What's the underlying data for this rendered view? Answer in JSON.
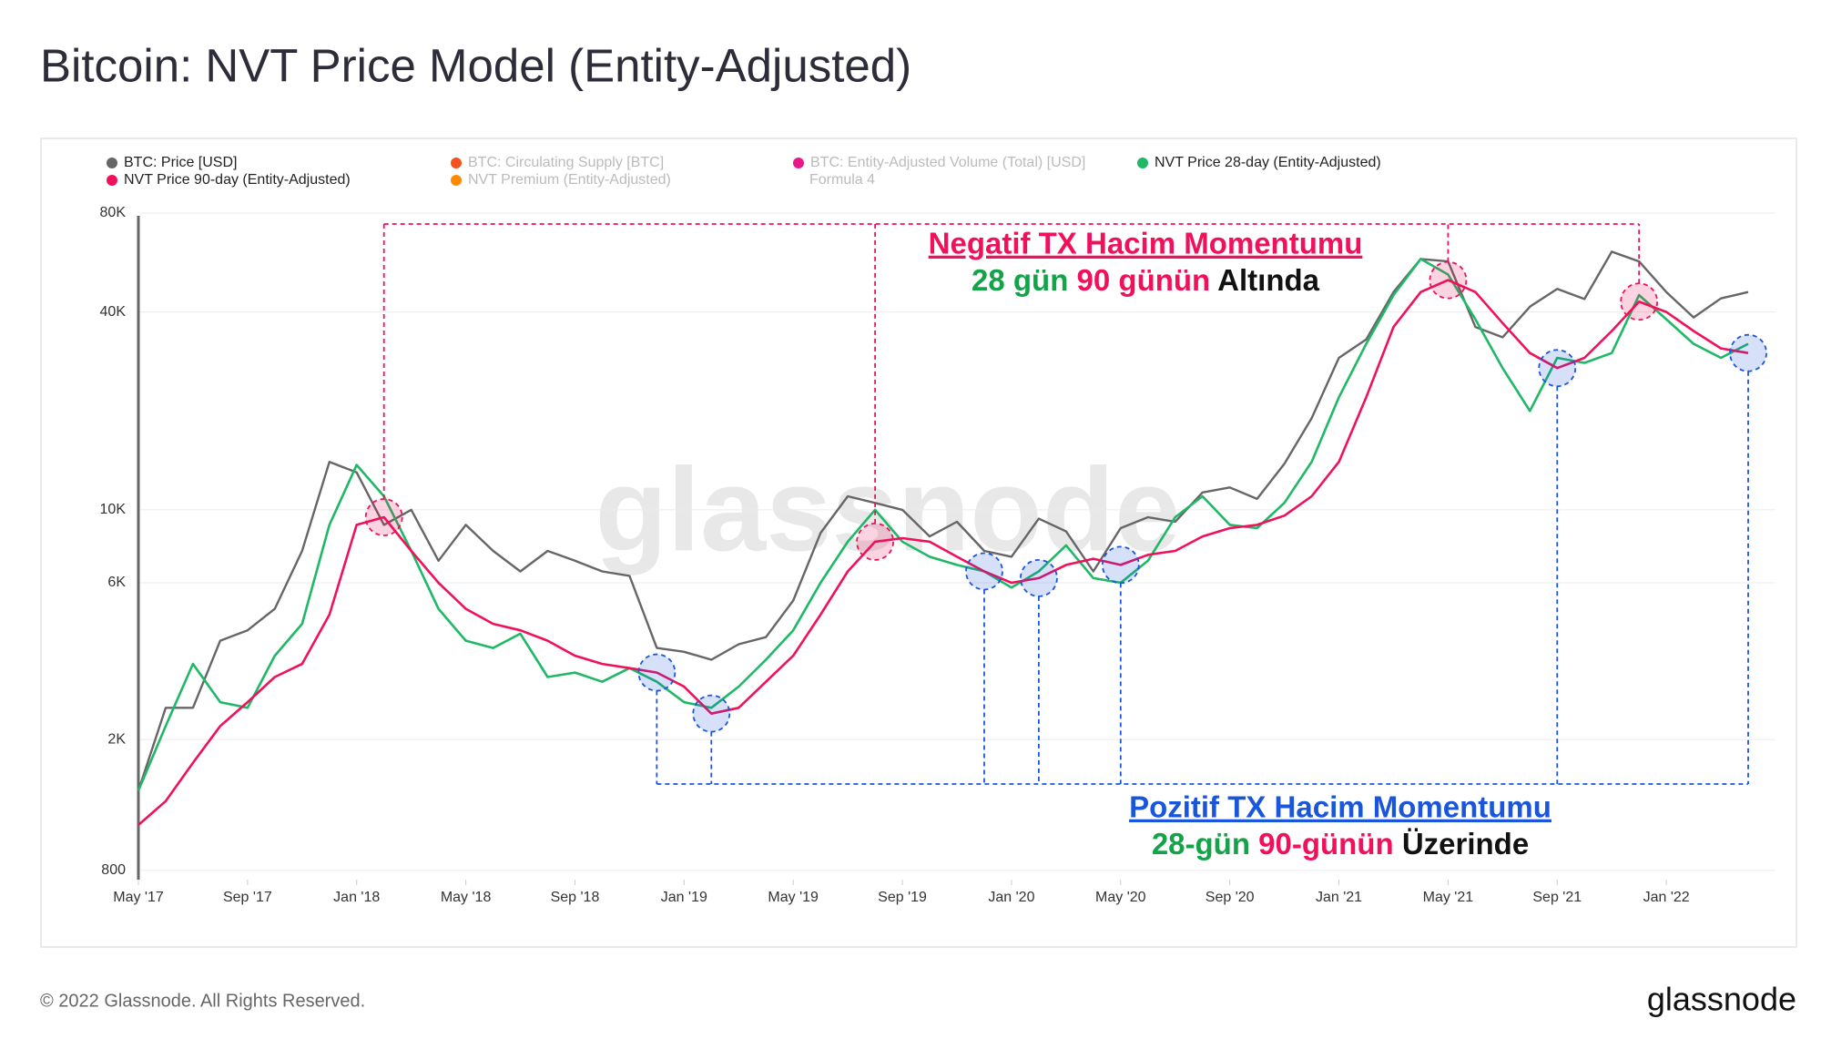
{
  "chart_data": {
    "type": "line",
    "title": "Bitcoin: NVT Price Model (Entity-Adjusted)",
    "watermark": "glassnode",
    "x": [
      "2017-05",
      "2017-06",
      "2017-07",
      "2017-08",
      "2017-09",
      "2017-10",
      "2017-11",
      "2017-12",
      "2018-01",
      "2018-02",
      "2018-03",
      "2018-04",
      "2018-05",
      "2018-06",
      "2018-07",
      "2018-08",
      "2018-09",
      "2018-10",
      "2018-11",
      "2018-12",
      "2019-01",
      "2019-02",
      "2019-03",
      "2019-04",
      "2019-05",
      "2019-06",
      "2019-07",
      "2019-08",
      "2019-09",
      "2019-10",
      "2019-11",
      "2019-12",
      "2020-01",
      "2020-02",
      "2020-03",
      "2020-04",
      "2020-05",
      "2020-06",
      "2020-07",
      "2020-08",
      "2020-09",
      "2020-10",
      "2020-11",
      "2020-12",
      "2021-01",
      "2021-02",
      "2021-03",
      "2021-04",
      "2021-05",
      "2021-06",
      "2021-07",
      "2021-08",
      "2021-09",
      "2021-10",
      "2021-11",
      "2021-12",
      "2022-01",
      "2022-02",
      "2022-03",
      "2022-04"
    ],
    "series": [
      {
        "name": "BTC: Price [USD]",
        "color": "#666666",
        "values": [
          1400,
          2500,
          2500,
          4000,
          4300,
          5000,
          7500,
          14000,
          13000,
          9000,
          10000,
          7000,
          9000,
          7500,
          6500,
          7500,
          7000,
          6500,
          6300,
          3800,
          3700,
          3500,
          3900,
          4100,
          5300,
          8500,
          11000,
          10500,
          10000,
          8300,
          9200,
          7500,
          7200,
          9400,
          8600,
          6500,
          8800,
          9500,
          9200,
          11300,
          11700,
          10800,
          13800,
          19000,
          29000,
          33000,
          46000,
          58000,
          57000,
          36000,
          33500,
          41500,
          47000,
          43800,
          61000,
          57000,
          46000,
          38500,
          44000,
          46000
        ]
      },
      {
        "name": "NVT Price 28-day (Entity-Adjusted)",
        "color": "#1fb866",
        "values": [
          1400,
          2200,
          3400,
          2600,
          2500,
          3600,
          4500,
          9000,
          13700,
          11000,
          7500,
          5000,
          4000,
          3800,
          4200,
          3100,
          3200,
          3000,
          3300,
          3000,
          2600,
          2500,
          2900,
          3500,
          4300,
          6000,
          8000,
          10000,
          8000,
          7200,
          6800,
          6500,
          5800,
          6500,
          7800,
          6200,
          6000,
          7000,
          9500,
          11000,
          9000,
          8800,
          10500,
          14000,
          22000,
          32000,
          45000,
          58000,
          52000,
          38000,
          27000,
          20000,
          29000,
          28000,
          30000,
          45000,
          38000,
          32000,
          29000,
          32000
        ]
      },
      {
        "name": "NVT Price 90-day (Entity-Adjusted)",
        "color": "#f0115a",
        "values": [
          1100,
          1300,
          1700,
          2200,
          2600,
          3100,
          3400,
          4800,
          9000,
          9500,
          7500,
          6000,
          5000,
          4500,
          4300,
          4000,
          3600,
          3400,
          3300,
          3200,
          2900,
          2400,
          2500,
          3000,
          3600,
          4800,
          6500,
          8000,
          8200,
          8000,
          7200,
          6500,
          6000,
          6200,
          6800,
          7100,
          6800,
          7300,
          7500,
          8300,
          8800,
          9000,
          9600,
          11000,
          14000,
          22000,
          36000,
          46000,
          50000,
          46000,
          37000,
          30000,
          27000,
          29000,
          35000,
          43000,
          40000,
          35000,
          31000,
          30000
        ]
      }
    ],
    "legend_inactive": [
      {
        "name": "BTC: Circulating Supply [BTC]",
        "color": "#f4511e"
      },
      {
        "name": "BTC: Entity-Adjusted Volume (Total) [USD]",
        "color": "#e8178a"
      },
      {
        "name": "NVT Premium (Entity-Adjusted)",
        "color": "#ff8a00"
      },
      {
        "name": "Formula 4"
      }
    ],
    "log_scale": true,
    "grid": true,
    "xlim": [
      "2017-05",
      "2022-05"
    ],
    "xticks": [
      {
        "value": "2017-05",
        "label": "May '17"
      },
      {
        "value": "2017-09",
        "label": "Sep '17"
      },
      {
        "value": "2018-01",
        "label": "Jan '18"
      },
      {
        "value": "2018-05",
        "label": "May '18"
      },
      {
        "value": "2018-09",
        "label": "Sep '18"
      },
      {
        "value": "2019-01",
        "label": "Jan '19"
      },
      {
        "value": "2019-05",
        "label": "May '19"
      },
      {
        "value": "2019-09",
        "label": "Sep '19"
      },
      {
        "value": "2020-01",
        "label": "Jan '20"
      },
      {
        "value": "2020-05",
        "label": "May '20"
      },
      {
        "value": "2020-09",
        "label": "Sep '20"
      },
      {
        "value": "2021-01",
        "label": "Jan '21"
      },
      {
        "value": "2021-05",
        "label": "May '21"
      },
      {
        "value": "2021-09",
        "label": "Sep '21"
      },
      {
        "value": "2022-01",
        "label": "Jan '22"
      }
    ],
    "ylim": [
      750,
      95000
    ],
    "yticks": [
      800,
      {
        "value": 2000,
        "label": "2K"
      },
      {
        "value": 6000,
        "label": "6K"
      },
      {
        "value": 10000,
        "label": "10K"
      },
      {
        "value": 40000,
        "label": "40K"
      },
      {
        "value": 80000,
        "label": "80K"
      }
    ],
    "annotations": {
      "negative": {
        "heading": "Negatif TX Hacim Momentumu",
        "color": "#f0115a",
        "parts": [
          {
            "text": "28 gün",
            "color": "#15a34a"
          },
          {
            "text": "90 günün",
            "color": "#f0115a"
          },
          {
            "text": "Altında",
            "color": "#111111"
          }
        ]
      },
      "positive": {
        "heading": "Pozitif TX Hacim Momentumu",
        "color": "#1a56db",
        "parts": [
          {
            "text": "28-gün",
            "color": "#15a34a"
          },
          {
            "text": "90-günün",
            "color": "#f0115a"
          },
          {
            "text": "Üzerinde",
            "color": "#111111"
          }
        ]
      }
    },
    "highlights": [
      {
        "x": "2018-02",
        "kind": "negative"
      },
      {
        "x": "2019-08",
        "kind": "negative"
      },
      {
        "x": "2021-05",
        "kind": "negative"
      },
      {
        "x": "2021-12",
        "kind": "negative"
      },
      {
        "x": "2018-12",
        "kind": "positive"
      },
      {
        "x": "2019-02",
        "kind": "positive"
      },
      {
        "x": "2019-12",
        "kind": "positive"
      },
      {
        "x": "2020-02",
        "kind": "positive"
      },
      {
        "x": "2020-05",
        "kind": "positive"
      },
      {
        "x": "2021-09",
        "kind": "positive"
      },
      {
        "x": "2022-04",
        "kind": "positive"
      }
    ]
  },
  "footer": {
    "copyright": "© 2022 Glassnode. All Rights Reserved.",
    "logo": "glassnode"
  }
}
